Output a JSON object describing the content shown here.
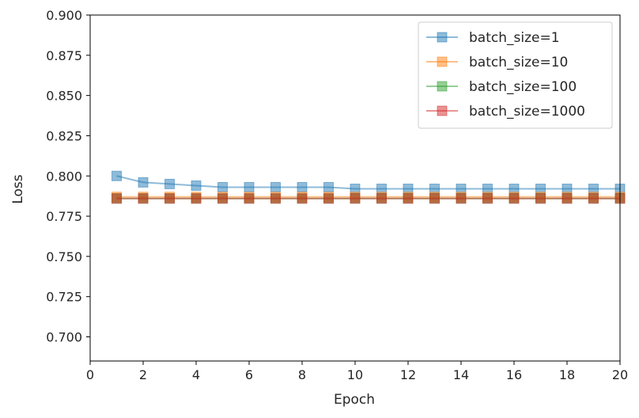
{
  "chart_data": {
    "type": "line",
    "xlabel": "Epoch",
    "ylabel": "Loss",
    "xlim": [
      0,
      20
    ],
    "ylim": [
      0.685,
      0.9
    ],
    "xticks": [
      "0",
      "2",
      "4",
      "6",
      "8",
      "10",
      "12",
      "14",
      "16",
      "18",
      "20"
    ],
    "yticks": [
      "0.700",
      "0.725",
      "0.750",
      "0.775",
      "0.800",
      "0.825",
      "0.850",
      "0.875",
      "0.900"
    ],
    "grid": false,
    "legend_position": "top-right",
    "x": [
      1,
      2,
      3,
      4,
      5,
      6,
      7,
      8,
      9,
      10,
      11,
      12,
      13,
      14,
      15,
      16,
      17,
      18,
      19,
      20
    ],
    "series": [
      {
        "name": "batch_size=1",
        "color": "#1f77b4",
        "values": [
          0.8,
          0.796,
          0.795,
          0.794,
          0.793,
          0.793,
          0.793,
          0.793,
          0.793,
          0.792,
          0.792,
          0.792,
          0.792,
          0.792,
          0.792,
          0.792,
          0.792,
          0.792,
          0.792,
          0.792
        ]
      },
      {
        "name": "batch_size=10",
        "color": "#ff7f0e",
        "values": [
          0.787,
          0.787,
          0.787,
          0.787,
          0.787,
          0.787,
          0.787,
          0.787,
          0.787,
          0.787,
          0.787,
          0.787,
          0.787,
          0.787,
          0.787,
          0.787,
          0.787,
          0.787,
          0.787,
          0.787
        ]
      },
      {
        "name": "batch_size=100",
        "color": "#2ca02c",
        "values": [
          0.786,
          0.786,
          0.786,
          0.786,
          0.786,
          0.786,
          0.786,
          0.786,
          0.786,
          0.786,
          0.786,
          0.786,
          0.786,
          0.786,
          0.786,
          0.786,
          0.786,
          0.786,
          0.786,
          0.786
        ]
      },
      {
        "name": "batch_size=1000",
        "color": "#d62728",
        "values": [
          0.786,
          0.786,
          0.786,
          0.786,
          0.786,
          0.786,
          0.786,
          0.786,
          0.786,
          0.786,
          0.786,
          0.786,
          0.786,
          0.786,
          0.786,
          0.786,
          0.786,
          0.786,
          0.786,
          0.786
        ]
      }
    ]
  }
}
